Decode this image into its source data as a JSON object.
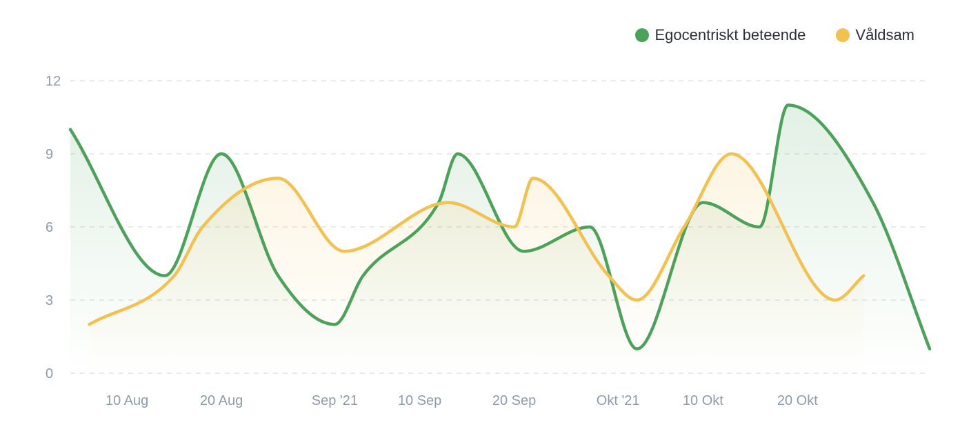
{
  "chart_data": {
    "type": "area",
    "title": "",
    "xlabel": "",
    "ylabel": "",
    "ylim": [
      0,
      12
    ],
    "y_ticks": [
      "0",
      "3",
      "6",
      "9",
      "12"
    ],
    "x_ticks": [
      {
        "label": "10 Aug",
        "x": "2021-08-10"
      },
      {
        "label": "20 Aug",
        "x": "2021-08-20"
      },
      {
        "label": "Sep '21",
        "x": "2021-09-01"
      },
      {
        "label": "10 Sep",
        "x": "2021-09-10"
      },
      {
        "label": "20 Sep",
        "x": "2021-09-20"
      },
      {
        "label": "Okt '21",
        "x": "2021-10-01"
      },
      {
        "label": "10 Okt",
        "x": "2021-10-10"
      },
      {
        "label": "20 Okt",
        "x": "2021-10-20"
      }
    ],
    "xlim": [
      "2021-08-04",
      "2021-11-03"
    ],
    "grid": true,
    "legend_position": "top-right",
    "series": [
      {
        "name": "Egocentriskt beteende",
        "color": "#4ba35a",
        "points": [
          {
            "x": "2021-08-04",
            "y": 10
          },
          {
            "x": "2021-08-14",
            "y": 4
          },
          {
            "x": "2021-08-20",
            "y": 9
          },
          {
            "x": "2021-08-26",
            "y": 4
          },
          {
            "x": "2021-09-01",
            "y": 2
          },
          {
            "x": "2021-09-04",
            "y": 4
          },
          {
            "x": "2021-09-12",
            "y": 7
          },
          {
            "x": "2021-09-14",
            "y": 9
          },
          {
            "x": "2021-09-21",
            "y": 5
          },
          {
            "x": "2021-09-28",
            "y": 6
          },
          {
            "x": "2021-10-03",
            "y": 1
          },
          {
            "x": "2021-10-10",
            "y": 7
          },
          {
            "x": "2021-10-16",
            "y": 6
          },
          {
            "x": "2021-10-19",
            "y": 11
          },
          {
            "x": "2021-10-28",
            "y": 7
          },
          {
            "x": "2021-11-03",
            "y": 1
          }
        ]
      },
      {
        "name": "Våldsam",
        "color": "#f2c14e",
        "points": [
          {
            "x": "2021-08-06",
            "y": 2
          },
          {
            "x": "2021-08-15",
            "y": 4
          },
          {
            "x": "2021-08-18",
            "y": 6
          },
          {
            "x": "2021-08-26",
            "y": 8
          },
          {
            "x": "2021-09-02",
            "y": 5
          },
          {
            "x": "2021-09-13",
            "y": 7
          },
          {
            "x": "2021-09-20",
            "y": 6
          },
          {
            "x": "2021-09-22",
            "y": 8
          },
          {
            "x": "2021-09-30",
            "y": 4
          },
          {
            "x": "2021-10-03",
            "y": 3
          },
          {
            "x": "2021-10-08",
            "y": 6
          },
          {
            "x": "2021-10-13",
            "y": 9
          },
          {
            "x": "2021-10-24",
            "y": 3
          },
          {
            "x": "2021-10-27",
            "y": 4
          }
        ]
      }
    ]
  }
}
